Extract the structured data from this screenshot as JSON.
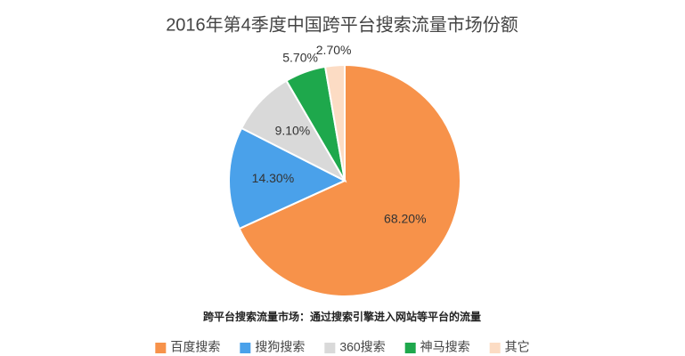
{
  "chart_data": {
    "type": "pie",
    "title": "2016年第4季度中国跨平台搜索流量市场份额",
    "note": "跨平台搜索流量市场：通过搜索引擎进入网站等平台的流量",
    "categories": [
      "百度搜索",
      "搜狗搜索",
      "360搜索",
      "神马搜索",
      "其它"
    ],
    "values": [
      68.2,
      14.3,
      9.1,
      5.7,
      2.7
    ],
    "value_labels": [
      "68.20%",
      "14.30%",
      "9.10%",
      "5.70%",
      "2.70%"
    ],
    "colors": [
      "#f7924a",
      "#4aa1ea",
      "#d9d9d9",
      "#1ea84c",
      "#fcdcc4"
    ],
    "legend": "bottom"
  }
}
